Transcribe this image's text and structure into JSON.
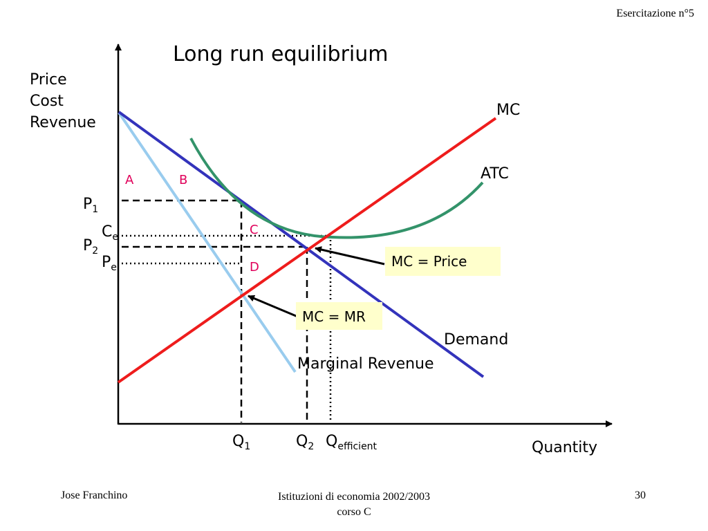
{
  "header": {
    "text": "Esercitazione n°5"
  },
  "footer": {
    "author": "Jose Franchino",
    "course_line1": "Istituzioni di economia 2002/2003",
    "course_line2": "corso C",
    "page_number": "30"
  },
  "diagram": {
    "title": "Long run equilibrium",
    "y_axis_label": [
      "Price",
      "Cost",
      "Revenue"
    ],
    "x_axis_label": "Quantity",
    "curves": {
      "mc": "MC",
      "atc": "ATC",
      "demand": "Demand",
      "marginal_revenue": "Marginal Revenue"
    },
    "region_labels": {
      "a": "A",
      "b": "B",
      "c": "C",
      "d": "D"
    },
    "price_labels": {
      "p1": {
        "main": "P",
        "sub": "1"
      },
      "ce": {
        "main": "C",
        "sub": "e"
      },
      "p2": {
        "main": "P",
        "sub": "2"
      },
      "pe": {
        "main": "P",
        "sub": "e"
      }
    },
    "quantity_labels": {
      "q1": {
        "main": "Q",
        "sub": "1"
      },
      "q2": {
        "main": "Q",
        "sub": "2"
      },
      "qeff": {
        "main": "Q",
        "sub": "efficient"
      }
    },
    "annotations": {
      "mc_price": "MC = Price",
      "mc_mr": "MC = MR"
    },
    "colors": {
      "mc": "#ee1c1c",
      "atc": "#33936a",
      "demand": "#3333bb",
      "marginal_revenue": "#99ccee",
      "region_label": "#e0005a",
      "annotation_box": "#ffffcc"
    }
  }
}
